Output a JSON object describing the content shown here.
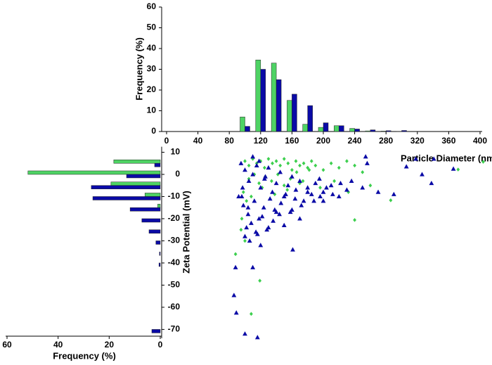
{
  "chart_data": [
    {
      "type": "bar",
      "ylabel": "Frequency (%)",
      "x": [
        100,
        120,
        140,
        160,
        180,
        200,
        220,
        240,
        260,
        280,
        300
      ],
      "series": [
        {
          "color": "#4ed364",
          "values": [
            7,
            34.5,
            33,
            15,
            3.5,
            2,
            2.8,
            1.5,
            0.3,
            0.2,
            0.1
          ]
        },
        {
          "color": "#0a0aa6",
          "values": [
            2.5,
            30,
            25,
            18,
            12.5,
            4.2,
            2.8,
            1.2,
            0.8,
            0.4,
            0.5
          ]
        }
      ],
      "xlim": [
        0,
        400
      ],
      "xticks": [
        0,
        40,
        80,
        120,
        160,
        200,
        240,
        280,
        320,
        360,
        400
      ],
      "ylim": [
        0,
        60
      ],
      "yticks": [
        0,
        10,
        20,
        30,
        40,
        50,
        60
      ]
    },
    {
      "type": "barh",
      "xlabel": "Frequency (%)",
      "y": [
        5,
        0,
        -5,
        -10,
        -15,
        -20,
        -25,
        -30,
        -35,
        -40,
        -70
      ],
      "series": [
        {
          "color": "#4ed364",
          "values": [
            18.2,
            51.8,
            19.3,
            6,
            1,
            0,
            0,
            0,
            0,
            0,
            0
          ]
        },
        {
          "color": "#0a0aa6",
          "values": [
            2.2,
            13.2,
            27,
            26.4,
            11.8,
            7.2,
            4.4,
            1.7,
            0.3,
            0.5,
            3.3
          ]
        }
      ],
      "xlim": [
        60,
        0
      ],
      "xticks": [
        60,
        40,
        20,
        0
      ],
      "ylim": [
        -74,
        12.5
      ],
      "yticks": [
        10,
        0,
        -10,
        -20,
        -30,
        -40,
        -50,
        -60,
        -70
      ]
    },
    {
      "type": "scatter",
      "xlabel": "Particle Diameter (nm)",
      "ylabel": "Zeta Potential (mV)",
      "xlim": [
        0,
        400
      ],
      "ylim": [
        -74,
        12.5
      ],
      "series": [
        {
          "color": "#3ccf4e",
          "marker": "diamond",
          "x": [
            100,
            105,
            110,
            115,
            120,
            125,
            130,
            135,
            140,
            145,
            150,
            155,
            160,
            165,
            170,
            175,
            180,
            185,
            190,
            200,
            210,
            220,
            230,
            240,
            250,
            105,
            112,
            118,
            126,
            134,
            142,
            150,
            158,
            166,
            174,
            182,
            98,
            102,
            96,
            108,
            122,
            138,
            154,
            170,
            196,
            214,
            232,
            260,
            286,
            372,
            404,
            240,
            119,
            108,
            88,
            95,
            100
          ],
          "y": [
            6,
            4,
            7,
            5,
            6,
            3,
            7,
            5,
            6,
            4,
            7,
            5,
            2,
            6,
            4,
            5,
            3,
            6,
            4,
            2,
            5,
            3,
            6,
            4,
            1,
            -2,
            0,
            -4,
            -1,
            -3,
            0,
            -5,
            -2,
            1,
            -3,
            2,
            -8,
            -12,
            -20,
            -10,
            -6,
            -9,
            -7,
            -4,
            -6,
            -3,
            -8,
            -5,
            -11.7,
            2.2,
            5.7,
            -20.6,
            -48,
            -63,
            -36,
            -25,
            -30
          ]
        },
        {
          "color": "#0a0aa6",
          "marker": "triangle",
          "x": [
            95,
            100,
            105,
            110,
            115,
            120,
            125,
            130,
            135,
            140,
            145,
            150,
            155,
            160,
            165,
            170,
            175,
            180,
            185,
            190,
            195,
            200,
            210,
            220,
            230,
            98,
            104,
            112,
            118,
            124,
            132,
            138,
            146,
            152,
            158,
            164,
            172,
            180,
            188,
            196,
            204,
            212,
            222,
            236,
            250,
            102,
            108,
            116,
            122,
            128,
            136,
            144,
            150,
            160,
            170,
            100,
            106,
            114,
            120,
            130,
            140,
            92,
            97,
            104,
            110,
            118,
            126,
            254,
            256,
            306,
            318,
            326,
            338,
            341,
            366,
            161,
            110,
            88,
            86,
            89,
            100,
            116,
            96,
            200,
            270,
            290
          ],
          "y": [
            5,
            2,
            -3,
            0,
            4,
            -6,
            -2,
            3,
            -8,
            -4,
            1,
            -10,
            -5,
            -1,
            -7,
            -3,
            -12,
            -6,
            -9,
            -4,
            -2,
            -8,
            -5,
            -10,
            -7,
            -14,
            -18,
            -12,
            -20,
            -15,
            -11,
            -16,
            -13,
            -9,
            -17,
            -11,
            -14,
            -8,
            -12,
            -10,
            -6,
            -9,
            -4,
            -3,
            -6,
            -24,
            -22,
            -27,
            -19,
            -25,
            -21,
            -18,
            -23,
            -16,
            -20,
            -28,
            -30,
            -26,
            -32,
            -24,
            -17,
            -10,
            -6,
            -15,
            8,
            6,
            -1,
            8,
            5,
            3.5,
            7,
            0,
            -4,
            7,
            2.5,
            -34,
            -42,
            -42,
            -54.6,
            -62.5,
            -72,
            -73.6,
            -10,
            -12,
            -8,
            -9
          ]
        }
      ]
    }
  ]
}
